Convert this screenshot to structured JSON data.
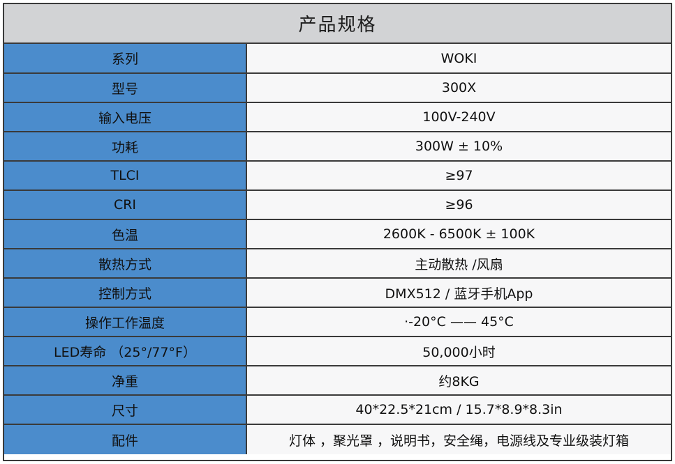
{
  "title": "产品规格",
  "colors": {
    "label_bg": "#4b8ccc",
    "value_bg": "#f7f7f8",
    "title_bg": "#d2d3d5"
  },
  "rows": [
    {
      "label": "系列",
      "value": "WOKI"
    },
    {
      "label": "型号",
      "value": "300X"
    },
    {
      "label": "输入电压",
      "value": "100V-240V"
    },
    {
      "label": "功耗",
      "value": "300W ± 10%"
    },
    {
      "label": "TLCI",
      "value": "≥97"
    },
    {
      "label": "CRI",
      "value": "≥96"
    },
    {
      "label": "色温",
      "value": "2600K - 6500K ± 100K"
    },
    {
      "label": "散热方式",
      "value": "主动散热 /风扇"
    },
    {
      "label": "控制方式",
      "value": "DMX512 / 蓝牙手机App"
    },
    {
      "label": "操作工作温度",
      "value": "·-20°C —— 45°C"
    },
    {
      "label": "LED寿命 （25°/77°F）",
      "value": "50,000小时"
    },
    {
      "label": "净重",
      "value": "约8KG"
    },
    {
      "label": "尺寸",
      "value": "40*22.5*21cm / 15.7*8.9*8.3in"
    },
    {
      "label": "配件",
      "value": "灯体 ，聚光罩 ，说明书，安全绳，电源线及专业级装灯箱"
    }
  ]
}
